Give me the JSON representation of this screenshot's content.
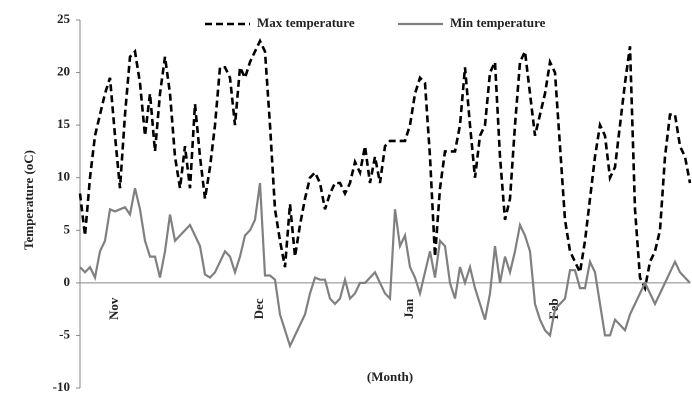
{
  "chart_data": {
    "type": "line",
    "x_label": "(Month)",
    "y_label": "Temperature (oC)",
    "legend": "top",
    "categories": [
      null,
      null,
      null,
      null,
      null,
      null,
      null,
      "Nov",
      null,
      null,
      null,
      null,
      null,
      null,
      null,
      null,
      null,
      null,
      null,
      null,
      null,
      null,
      null,
      null,
      null,
      null,
      null,
      null,
      null,
      null,
      null,
      null,
      null,
      null,
      null,
      null,
      "Dec",
      null,
      null,
      null,
      null,
      null,
      null,
      null,
      null,
      null,
      null,
      null,
      null,
      null,
      null,
      null,
      null,
      null,
      null,
      null,
      null,
      null,
      null,
      null,
      null,
      null,
      null,
      null,
      null,
      null,
      "Jan",
      null,
      null,
      null,
      null,
      null,
      null,
      null,
      null,
      null,
      null,
      null,
      null,
      null,
      null,
      null,
      null,
      null,
      null,
      null,
      null,
      null,
      null,
      null,
      null,
      null,
      null,
      null,
      null,
      "Feb",
      null,
      null,
      null,
      null,
      null,
      null,
      null,
      null,
      null,
      null,
      null,
      null,
      null,
      null,
      null,
      null,
      null,
      null,
      null,
      null,
      null,
      null,
      null,
      null,
      null,
      null,
      null
    ],
    "series": [
      {
        "name": "Max temperature",
        "color": "#000000",
        "line_style": "dashed",
        "values": [
          8.5,
          4.5,
          10,
          14,
          16,
          18,
          19.5,
          14,
          9,
          16,
          21.5,
          22,
          19,
          14,
          18,
          12.5,
          18,
          21.5,
          18,
          12,
          9,
          13,
          9,
          17,
          12,
          8,
          11,
          15,
          20.5,
          20.5,
          19.5,
          15,
          20.5,
          19.5,
          21,
          22,
          23,
          22,
          15,
          7,
          4,
          1.5,
          7.5,
          2.5,
          5.5,
          8,
          10,
          10.5,
          9.5,
          7,
          8.5,
          9.5,
          9.5,
          8.5,
          9.5,
          11.5,
          10.5,
          13,
          9.5,
          12,
          9.5,
          13,
          13.5,
          13.5,
          13.5,
          13.5,
          15,
          18,
          19.5,
          19,
          12,
          2.5,
          9,
          12.5,
          12.5,
          12.5,
          15,
          20.5,
          15,
          10,
          14,
          15,
          20,
          21,
          12,
          6,
          8,
          15,
          21,
          22,
          18,
          14,
          16,
          18,
          21,
          20,
          13,
          6,
          3,
          2,
          1,
          4,
          8,
          12,
          15,
          14,
          10,
          11,
          15,
          19,
          22.5,
          7,
          0.5,
          -0.5,
          2,
          3,
          5,
          12,
          16,
          16,
          13,
          12,
          9.5
        ]
      },
      {
        "name": "Min temperature",
        "color": "#808080",
        "line_style": "solid",
        "values": [
          1.5,
          1,
          1.5,
          0.5,
          3,
          4,
          7,
          6.8,
          7,
          7.2,
          6.5,
          9,
          7,
          4,
          2.5,
          2.5,
          0.5,
          3,
          6.5,
          4,
          4.5,
          5,
          5.5,
          4.5,
          3.5,
          0.8,
          0.5,
          1,
          2,
          3,
          2.5,
          1,
          2.5,
          4.5,
          5,
          6,
          9.5,
          0.7,
          0.7,
          0.3,
          -3,
          -4.5,
          -6,
          -5,
          -4,
          -3,
          -1,
          0.5,
          0.3,
          0.3,
          -1.5,
          -2,
          -1.5,
          0.3,
          -1.5,
          -1,
          0,
          0,
          0.5,
          1,
          0,
          -1,
          -1.5,
          7,
          3.5,
          4.5,
          1.5,
          0.5,
          -1,
          1,
          3,
          0.5,
          4,
          3.5,
          0,
          -1.5,
          1.5,
          0,
          1.5,
          -0.5,
          -2,
          -3.5,
          -1,
          3.5,
          0,
          2.5,
          1,
          3,
          5.5,
          4.5,
          3,
          -2,
          -3.5,
          -4.5,
          -5,
          -2.5,
          -2,
          -1.5,
          1.2,
          1.2,
          -0.5,
          -0.5,
          2,
          1,
          -2,
          -5,
          -5,
          -3.5,
          -4,
          -4.5,
          -3,
          -2,
          -1,
          0,
          -1,
          -2,
          -1,
          0,
          1,
          2,
          1,
          0.5,
          0
        ]
      }
    ],
    "ylim": [
      -10,
      25
    ],
    "yticks": [
      -10,
      -5,
      0,
      5,
      10,
      15,
      20,
      25
    ]
  }
}
